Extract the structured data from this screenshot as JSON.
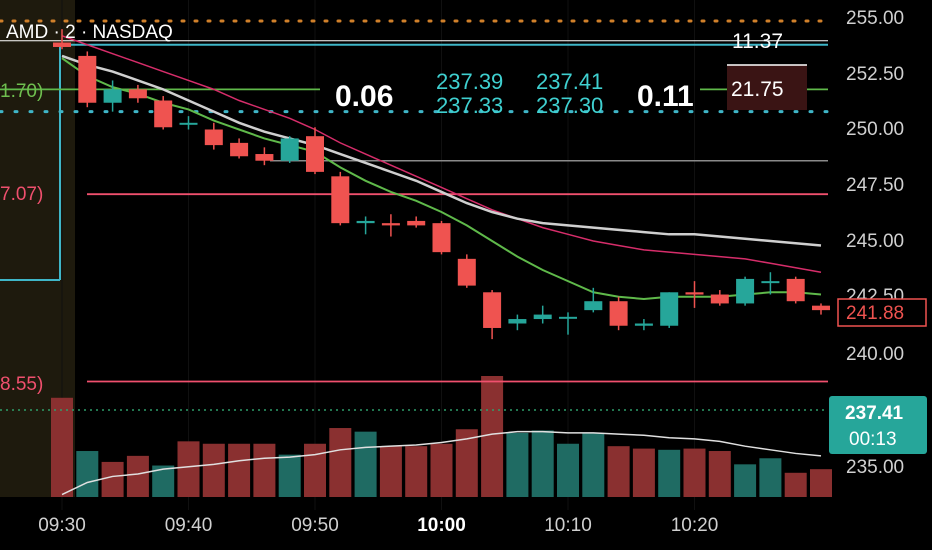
{
  "header": {
    "symbol_line": "AMD · 2 · NASDAQ"
  },
  "left_labels": [
    "1.70)",
    "7.07)",
    "8.55)"
  ],
  "readouts": {
    "spread_left": "0.06",
    "bid_top": "237.39",
    "bid_bottom": "237.33",
    "ask_top": "237.41",
    "ask_bottom": "237.30",
    "spread_right": "0.11",
    "box_top": "11.37",
    "box_bottom": "21.75"
  },
  "price_scale": {
    "ticks": [
      "255.00",
      "252.50",
      "250.00",
      "247.50",
      "245.00",
      "242.50",
      "240.00",
      "235.00"
    ],
    "last_price_label": "241.88",
    "current_price": "237.41",
    "countdown": "00:13"
  },
  "colors": {
    "up": "#26a69a",
    "down": "#ef5350",
    "up_volume": "#1f6b63",
    "down_volume": "#8a3030",
    "ma_green": "#5fb94a",
    "ma_white": "#cfcfcf",
    "ma_magenta": "#d62d6a",
    "cyan": "#3fb6c8",
    "level_red": "#f0506e"
  },
  "chart_data": {
    "type": "candlestick",
    "title": "AMD · 2 · NASDAQ",
    "x_ticks": [
      "09:30",
      "09:40",
      "09:50",
      "10:00",
      "10:10",
      "10:20"
    ],
    "y_ticks": [
      255.0,
      252.5,
      250.0,
      247.5,
      245.0,
      242.5,
      240.0,
      235.0
    ],
    "ohlc": [
      {
        "o": 253.9,
        "h": 254.5,
        "l": 253.6,
        "c": 253.7
      },
      {
        "o": 253.3,
        "h": 253.5,
        "l": 251.0,
        "c": 251.2
      },
      {
        "o": 251.2,
        "h": 252.2,
        "l": 250.8,
        "c": 251.8
      },
      {
        "o": 251.8,
        "h": 252.0,
        "l": 251.2,
        "c": 251.4
      },
      {
        "o": 251.3,
        "h": 251.5,
        "l": 250.0,
        "c": 250.1
      },
      {
        "o": 250.3,
        "h": 250.6,
        "l": 250.0,
        "c": 250.3
      },
      {
        "o": 250.0,
        "h": 250.3,
        "l": 249.1,
        "c": 249.3
      },
      {
        "o": 249.4,
        "h": 249.6,
        "l": 248.7,
        "c": 248.8
      },
      {
        "o": 248.9,
        "h": 249.2,
        "l": 248.4,
        "c": 248.6
      },
      {
        "o": 248.6,
        "h": 249.7,
        "l": 248.5,
        "c": 249.6
      },
      {
        "o": 249.7,
        "h": 250.1,
        "l": 248.0,
        "c": 248.1
      },
      {
        "o": 247.9,
        "h": 248.1,
        "l": 245.7,
        "c": 245.8
      },
      {
        "o": 245.8,
        "h": 246.1,
        "l": 245.3,
        "c": 245.9
      },
      {
        "o": 245.8,
        "h": 246.2,
        "l": 245.2,
        "c": 245.7
      },
      {
        "o": 245.9,
        "h": 246.1,
        "l": 245.6,
        "c": 245.7
      },
      {
        "o": 245.8,
        "h": 245.9,
        "l": 244.4,
        "c": 244.5
      },
      {
        "o": 244.2,
        "h": 244.4,
        "l": 242.9,
        "c": 243.0
      },
      {
        "o": 242.7,
        "h": 242.8,
        "l": 240.6,
        "c": 241.1
      },
      {
        "o": 241.3,
        "h": 241.7,
        "l": 241.0,
        "c": 241.5
      },
      {
        "o": 241.5,
        "h": 242.1,
        "l": 241.3,
        "c": 241.7
      },
      {
        "o": 241.6,
        "h": 241.8,
        "l": 240.8,
        "c": 241.6
      },
      {
        "o": 241.9,
        "h": 242.9,
        "l": 241.8,
        "c": 242.3
      },
      {
        "o": 242.3,
        "h": 242.5,
        "l": 241.0,
        "c": 241.2
      },
      {
        "o": 241.2,
        "h": 241.5,
        "l": 241.0,
        "c": 241.3
      },
      {
        "o": 241.2,
        "h": 242.7,
        "l": 241.1,
        "c": 242.7
      },
      {
        "o": 242.7,
        "h": 243.2,
        "l": 242.0,
        "c": 242.6
      },
      {
        "o": 242.6,
        "h": 242.8,
        "l": 242.1,
        "c": 242.2
      },
      {
        "o": 242.2,
        "h": 243.4,
        "l": 242.1,
        "c": 243.3
      },
      {
        "o": 243.2,
        "h": 243.6,
        "l": 242.6,
        "c": 243.2
      },
      {
        "o": 243.3,
        "h": 243.4,
        "l": 242.2,
        "c": 242.3
      },
      {
        "o": 242.1,
        "h": 242.2,
        "l": 241.7,
        "c": 241.9
      }
    ],
    "volume": [
      0.82,
      0.38,
      0.29,
      0.34,
      0.26,
      0.46,
      0.44,
      0.44,
      0.44,
      0.35,
      0.44,
      0.57,
      0.54,
      0.42,
      0.42,
      0.44,
      0.56,
      1.0,
      0.53,
      0.55,
      0.44,
      0.53,
      0.42,
      0.4,
      0.39,
      0.4,
      0.38,
      0.27,
      0.32,
      0.2,
      0.23
    ],
    "volume_up": [
      false,
      true,
      false,
      false,
      true,
      false,
      false,
      false,
      false,
      true,
      false,
      false,
      true,
      false,
      false,
      false,
      false,
      false,
      true,
      true,
      true,
      true,
      false,
      false,
      true,
      false,
      false,
      true,
      true,
      false,
      false
    ],
    "volume_ma": [
      0.02,
      0.12,
      0.17,
      0.19,
      0.23,
      0.25,
      0.27,
      0.3,
      0.32,
      0.33,
      0.35,
      0.39,
      0.41,
      0.42,
      0.43,
      0.45,
      0.48,
      0.52,
      0.54,
      0.54,
      0.53,
      0.53,
      0.52,
      0.51,
      0.49,
      0.48,
      0.46,
      0.42,
      0.39,
      0.36,
      0.34
    ],
    "ma_fast": [
      253.2,
      252.4,
      251.9,
      251.6,
      251.2,
      250.9,
      250.4,
      250.0,
      249.6,
      249.3,
      249.0,
      248.3,
      247.7,
      247.2,
      246.8,
      246.3,
      245.7,
      245.0,
      244.3,
      243.7,
      243.2,
      242.7,
      242.5,
      242.4,
      242.5,
      242.5,
      242.5,
      242.6,
      242.7,
      242.7,
      242.6
    ],
    "ma_mid": [
      253.3,
      252.9,
      252.6,
      252.2,
      251.8,
      251.3,
      250.8,
      250.3,
      249.9,
      249.6,
      249.3,
      248.9,
      248.5,
      248.1,
      247.7,
      247.2,
      246.7,
      246.3,
      246.0,
      245.8,
      245.7,
      245.6,
      245.5,
      245.4,
      245.3,
      245.3,
      245.2,
      245.1,
      245.0,
      244.9,
      244.8
    ],
    "ma_slow": [
      254.2,
      253.8,
      253.4,
      253.0,
      252.6,
      252.2,
      251.8,
      251.3,
      250.9,
      250.5,
      250.0,
      249.4,
      248.9,
      248.4,
      247.9,
      247.4,
      246.9,
      246.4,
      246.0,
      245.6,
      245.3,
      245.0,
      244.8,
      244.6,
      244.5,
      244.4,
      244.3,
      244.2,
      244.0,
      243.8,
      243.6
    ],
    "levels": {
      "cyan": 253.8,
      "green": 251.8,
      "cyan_dotted": 250.8,
      "grey": 248.6,
      "red_upper": 247.1,
      "red_lower": 238.7
    }
  }
}
